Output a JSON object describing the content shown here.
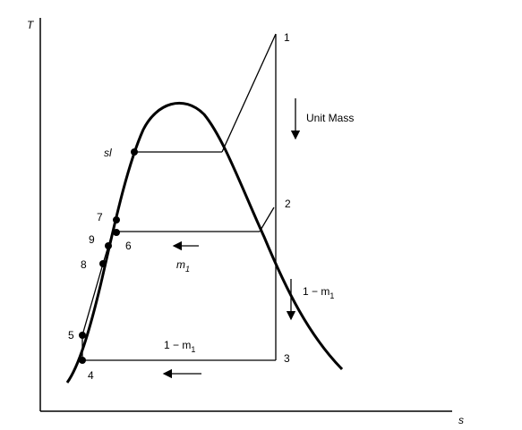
{
  "axes": {
    "y_label": "T",
    "x_label": "s"
  },
  "points": [
    {
      "label": "1"
    },
    {
      "label": "2"
    },
    {
      "label": "3"
    },
    {
      "label": "4"
    },
    {
      "label": "5"
    },
    {
      "label": "6"
    },
    {
      "label": "7"
    },
    {
      "label": "8"
    },
    {
      "label": "9"
    },
    {
      "label": "sl"
    }
  ],
  "annotations": {
    "unit_mass": "Unit Mass",
    "m1_main": "m",
    "m1_sub": "1",
    "right_flow": {
      "prefix": "1 − m",
      "sub": "1"
    },
    "bottom_flow": {
      "prefix": "1 − m",
      "sub": "1"
    }
  }
}
